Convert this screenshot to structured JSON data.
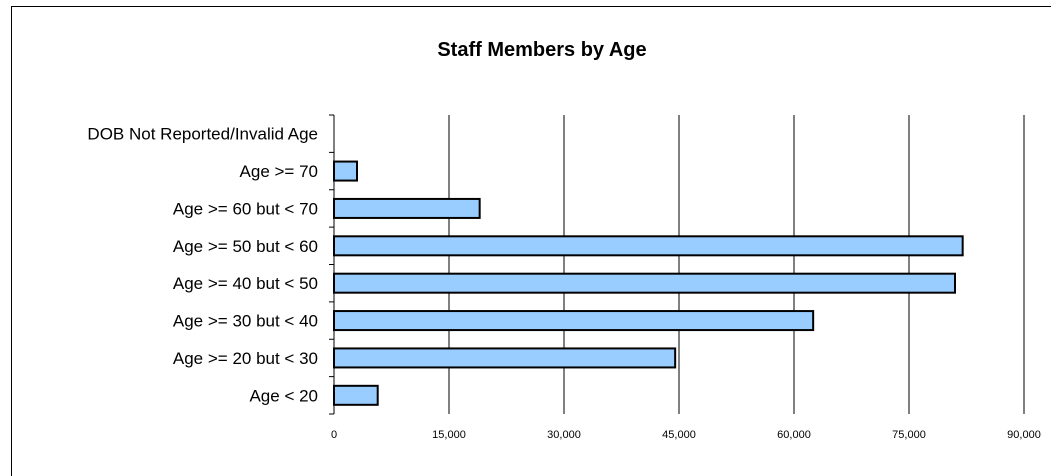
{
  "chart_data": {
    "type": "bar",
    "orientation": "horizontal",
    "title": "Staff Members by Age",
    "xlabel": "",
    "ylabel": "",
    "categories": [
      "DOB Not Reported/Invalid Age",
      "Age >= 70",
      "Age >= 60 but < 70",
      "Age >= 50 but < 60",
      "Age >= 40 but < 50",
      "Age >= 30 but < 40",
      "Age >= 20 but < 30",
      "Age < 20"
    ],
    "values": [
      0,
      3000,
      19000,
      82000,
      81000,
      62500,
      44500,
      5700
    ],
    "xlim": [
      0,
      90000
    ],
    "xticks": [
      "0",
      "15,000",
      "30,000",
      "45,000",
      "60,000",
      "75,000",
      "90,000"
    ],
    "xtick_values": [
      0,
      15000,
      30000,
      45000,
      60000,
      75000,
      90000
    ],
    "grid": true,
    "legend": "none",
    "colors": {
      "bar_fill": "#99ccff",
      "bar_stroke": "#000000",
      "grid": "#000000"
    }
  }
}
